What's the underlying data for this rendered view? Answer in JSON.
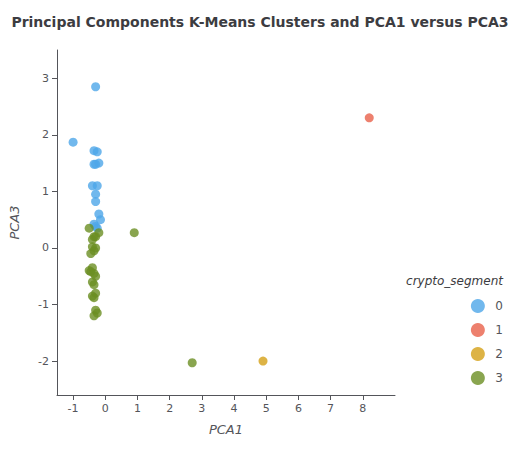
{
  "chart_data": {
    "type": "scatter",
    "title": "Principal Components K-Means Clusters and PCA1 versus PCA3",
    "xlabel": "PCA1",
    "ylabel": "PCA3",
    "xlim": [
      -1.5,
      9.0
    ],
    "ylim": [
      -2.6,
      3.5
    ],
    "xticks": [
      -1,
      0,
      1,
      2,
      3,
      4,
      5,
      6,
      7,
      8
    ],
    "yticks": [
      -2,
      -1,
      0,
      1,
      2,
      3
    ],
    "grid": false,
    "legend": "lower right",
    "legend_title": "crypto_segment",
    "series": [
      {
        "name": "0",
        "color": "#4da6e8",
        "x": [
          -1.0,
          -0.3,
          -0.35,
          -0.25,
          -0.2,
          -0.35,
          -0.3,
          -0.4,
          -0.25,
          -0.3,
          -0.3,
          -0.2,
          -0.15,
          -0.35,
          -0.3,
          -0.25
        ],
        "y": [
          1.87,
          2.85,
          1.72,
          1.7,
          1.5,
          1.48,
          1.48,
          1.1,
          1.1,
          0.95,
          0.82,
          0.6,
          0.5,
          0.42,
          0.38,
          0.35
        ]
      },
      {
        "name": "1",
        "color": "#e8604a",
        "x": [
          8.2
        ],
        "y": [
          2.3
        ]
      },
      {
        "name": "2",
        "color": "#d4a017",
        "x": [
          4.9
        ],
        "y": [
          -2.0
        ]
      },
      {
        "name": "3",
        "color": "#6b8e23",
        "x": [
          -0.5,
          -0.2,
          -0.3,
          -0.35,
          -0.4,
          -0.4,
          -0.3,
          -0.35,
          -0.45,
          -0.4,
          -0.5,
          -0.45,
          -0.35,
          -0.3,
          -0.4,
          -0.35,
          -0.3,
          -0.4,
          -0.35,
          -0.3,
          -0.25,
          -0.35,
          0.9,
          2.7
        ],
        "y": [
          0.35,
          0.27,
          0.2,
          0.2,
          0.15,
          0.02,
          0.0,
          -0.05,
          -0.1,
          -0.35,
          -0.4,
          -0.42,
          -0.45,
          -0.5,
          -0.6,
          -0.65,
          -0.8,
          -0.85,
          -0.88,
          -1.1,
          -1.15,
          -1.2,
          0.27,
          -2.03
        ]
      }
    ]
  }
}
